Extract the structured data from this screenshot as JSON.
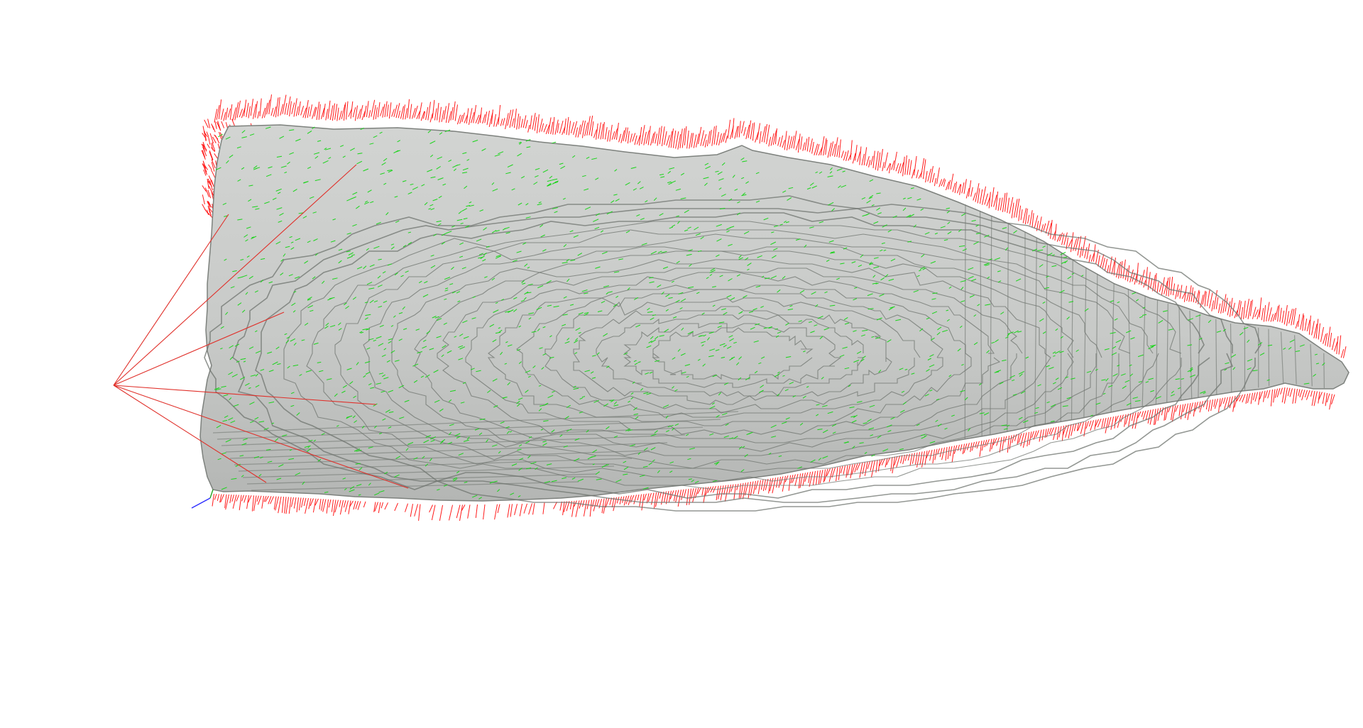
{
  "viewer": {
    "background_color": "#ffffff",
    "mesh": {
      "object": "voxel-surface-mesh",
      "fill_color": "#c6c8c6",
      "contour_color": "#6f746f"
    },
    "normals": {
      "outer_color": "#ff1a1a",
      "surface_color": "#19d419"
    },
    "camera_frustum": {
      "color": "#e0302a"
    },
    "axis_marker": {
      "x_color": "#2a2aff",
      "y_color": "#19a019"
    }
  }
}
